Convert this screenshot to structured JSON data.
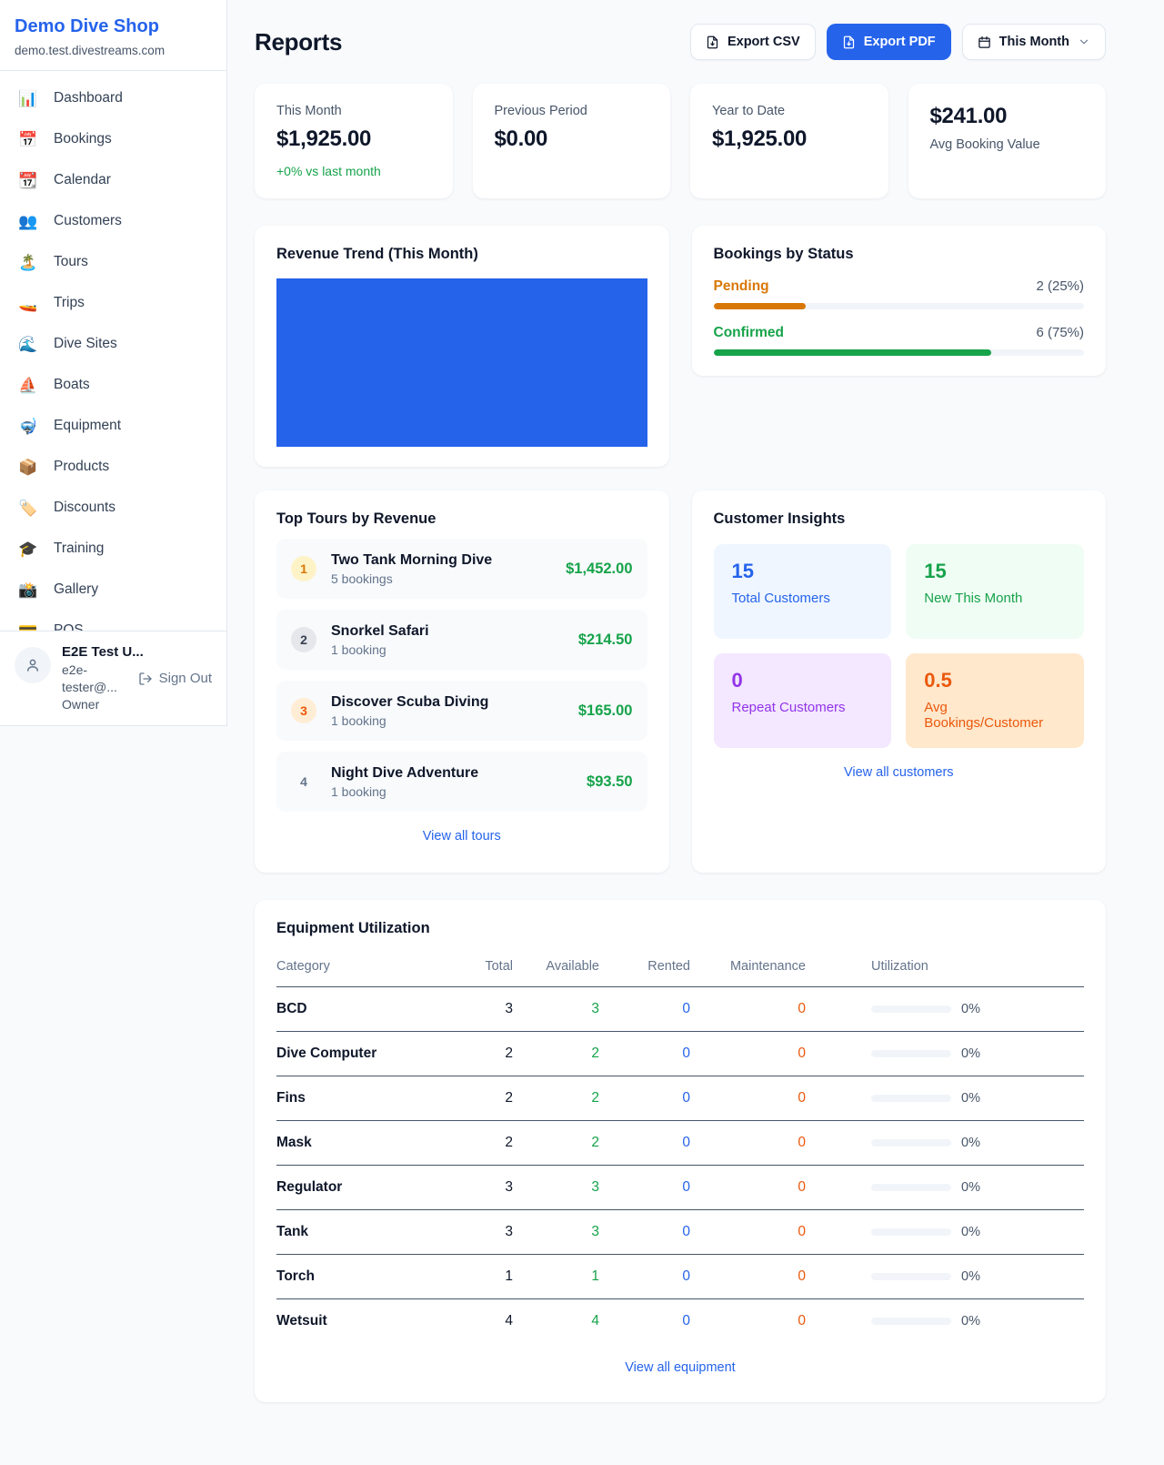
{
  "colors": {
    "accent_blue": "#2563eb",
    "success_green": "#16a34a",
    "pending_orange": "#d97706",
    "maintenance_orange": "#ea580c",
    "repeat_purple": "#9333ea",
    "page_bg": "#f8fafc",
    "card_bg": "#ffffff"
  },
  "sidebar": {
    "shop_name": "Demo Dive Shop",
    "shop_domain": "demo.test.divestreams.com",
    "items": [
      {
        "icon": "📊",
        "label": "Dashboard"
      },
      {
        "icon": "📅",
        "label": "Bookings"
      },
      {
        "icon": "📆",
        "label": "Calendar"
      },
      {
        "icon": "👥",
        "label": "Customers"
      },
      {
        "icon": "🏝️",
        "label": "Tours"
      },
      {
        "icon": "🚤",
        "label": "Trips"
      },
      {
        "icon": "🌊",
        "label": "Dive Sites"
      },
      {
        "icon": "⛵",
        "label": "Boats"
      },
      {
        "icon": "🤿",
        "label": "Equipment"
      },
      {
        "icon": "📦",
        "label": "Products"
      },
      {
        "icon": "🏷️",
        "label": "Discounts"
      },
      {
        "icon": "🎓",
        "label": "Training"
      },
      {
        "icon": "📸",
        "label": "Gallery"
      },
      {
        "icon": "💳",
        "label": "POS"
      }
    ],
    "user": {
      "name": "E2E Test U...",
      "email": "e2e-tester@...",
      "role": "Owner",
      "sign_out_label": "Sign Out"
    }
  },
  "header": {
    "title": "Reports",
    "export_csv_label": "Export CSV",
    "export_pdf_label": "Export PDF",
    "period_label": "This Month"
  },
  "stats": [
    {
      "label": "This Month",
      "value": "$1,925.00",
      "note": "+0% vs last month"
    },
    {
      "label": "Previous Period",
      "value": "$0.00"
    },
    {
      "label": "Year to Date",
      "value": "$1,925.00"
    },
    {
      "label": "Avg Booking Value",
      "value": "$241.00"
    }
  ],
  "revenue_trend": {
    "title": "Revenue Trend (This Month)"
  },
  "bookings_by_status": {
    "title": "Bookings by Status",
    "rows": [
      {
        "label": "Pending",
        "count_text": "2 (25%)",
        "pct": 25
      },
      {
        "label": "Confirmed",
        "count_text": "6 (75%)",
        "pct": 75
      }
    ]
  },
  "chart_data": [
    {
      "type": "bar",
      "title": "Revenue Trend (This Month)",
      "categories": [
        "This Month"
      ],
      "values": [
        1925
      ],
      "bar_color": "#2563eb"
    },
    {
      "type": "bar",
      "title": "Bookings by Status",
      "categories": [
        "Pending",
        "Confirmed"
      ],
      "values": [
        2,
        6
      ],
      "percentages": [
        25,
        75
      ],
      "colors": [
        "#d97706",
        "#16a34a"
      ]
    }
  ],
  "top_tours": {
    "title": "Top Tours by Revenue",
    "view_all_label": "View all tours",
    "rows": [
      {
        "rank": "1",
        "name": "Two Tank Morning Dive",
        "bookings": "5 bookings",
        "revenue": "$1,452.00"
      },
      {
        "rank": "2",
        "name": "Snorkel Safari",
        "bookings": "1 booking",
        "revenue": "$214.50"
      },
      {
        "rank": "3",
        "name": "Discover Scuba Diving",
        "bookings": "1 booking",
        "revenue": "$165.00"
      },
      {
        "rank": "4",
        "name": "Night Dive Adventure",
        "bookings": "1 booking",
        "revenue": "$93.50"
      }
    ]
  },
  "customer_insights": {
    "title": "Customer Insights",
    "view_all_label": "View all customers",
    "tiles": [
      {
        "value": "15",
        "label": "Total Customers"
      },
      {
        "value": "15",
        "label": "New This Month"
      },
      {
        "value": "0",
        "label": "Repeat Customers"
      },
      {
        "value": "0.5",
        "label": "Avg Bookings/Customer"
      }
    ]
  },
  "equipment": {
    "title": "Equipment Utilization",
    "view_all_label": "View all equipment",
    "columns": [
      "Category",
      "Total",
      "Available",
      "Rented",
      "Maintenance",
      "Utilization"
    ],
    "rows": [
      {
        "category": "BCD",
        "total": "3",
        "available": "3",
        "rented": "0",
        "maintenance": "0",
        "utilization": "0%",
        "pct": 0
      },
      {
        "category": "Dive Computer",
        "total": "2",
        "available": "2",
        "rented": "0",
        "maintenance": "0",
        "utilization": "0%",
        "pct": 0
      },
      {
        "category": "Fins",
        "total": "2",
        "available": "2",
        "rented": "0",
        "maintenance": "0",
        "utilization": "0%",
        "pct": 0
      },
      {
        "category": "Mask",
        "total": "2",
        "available": "2",
        "rented": "0",
        "maintenance": "0",
        "utilization": "0%",
        "pct": 0
      },
      {
        "category": "Regulator",
        "total": "3",
        "available": "3",
        "rented": "0",
        "maintenance": "0",
        "utilization": "0%",
        "pct": 0
      },
      {
        "category": "Tank",
        "total": "3",
        "available": "3",
        "rented": "0",
        "maintenance": "0",
        "utilization": "0%",
        "pct": 0
      },
      {
        "category": "Torch",
        "total": "1",
        "available": "1",
        "rented": "0",
        "maintenance": "0",
        "utilization": "0%",
        "pct": 0
      },
      {
        "category": "Wetsuit",
        "total": "4",
        "available": "4",
        "rented": "0",
        "maintenance": "0",
        "utilization": "0%",
        "pct": 0
      }
    ]
  }
}
